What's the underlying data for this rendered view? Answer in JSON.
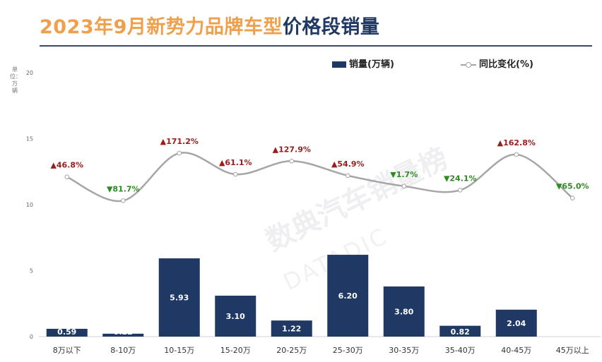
{
  "header": {
    "title_part1": "2023年9月新势力品牌车型",
    "title_part2": "价格段销量"
  },
  "unit_label": "单位：万辆",
  "watermark": {
    "text": "数典汽车销量榜",
    "subtext": "DATADIC"
  },
  "chart_data": {
    "type": "bar",
    "categories": [
      "8万以下",
      "8-10万",
      "10-15万",
      "15-20万",
      "20-25万",
      "25-30万",
      "30-35万",
      "35-40万",
      "40-45万",
      "45万以上"
    ],
    "yticks": [
      "0",
      "5",
      "10",
      "15",
      "20"
    ],
    "ylim": [
      0,
      20
    ],
    "grid": false,
    "legend_position": "top-right",
    "series": [
      {
        "name": "销量(万辆)",
        "type": "bar",
        "color": "#1f3864",
        "values": [
          0.59,
          0.22,
          5.93,
          3.1,
          1.22,
          6.2,
          3.8,
          0.82,
          2.04,
          0
        ],
        "labels": [
          "0.59",
          "0.22",
          "5.93",
          "3.10",
          "1.22",
          "6.20",
          "3.80",
          "0.82",
          "2.04",
          ""
        ]
      },
      {
        "name": "同比变化(%)",
        "type": "line",
        "smooth": true,
        "color": "#a6a6a6",
        "plot_values": [
          12.1,
          10.3,
          13.9,
          12.3,
          13.3,
          12.2,
          11.4,
          11.1,
          13.8,
          10.5
        ],
        "labels": [
          "▲46.8%",
          "▼81.7%",
          "▲171.2%",
          "▲61.1%",
          "▲127.9%",
          "▲54.9%",
          "▼1.7%",
          "▼24.1%",
          "▲162.8%",
          "▼65.0%"
        ],
        "label_colors": [
          "#9b1c1c",
          "#2e8b22",
          "#9b1c1c",
          "#9b1c1c",
          "#9b1c1c",
          "#9b1c1c",
          "#2e8b22",
          "#2e8b22",
          "#9b1c1c",
          "#2e8b22"
        ]
      }
    ]
  }
}
